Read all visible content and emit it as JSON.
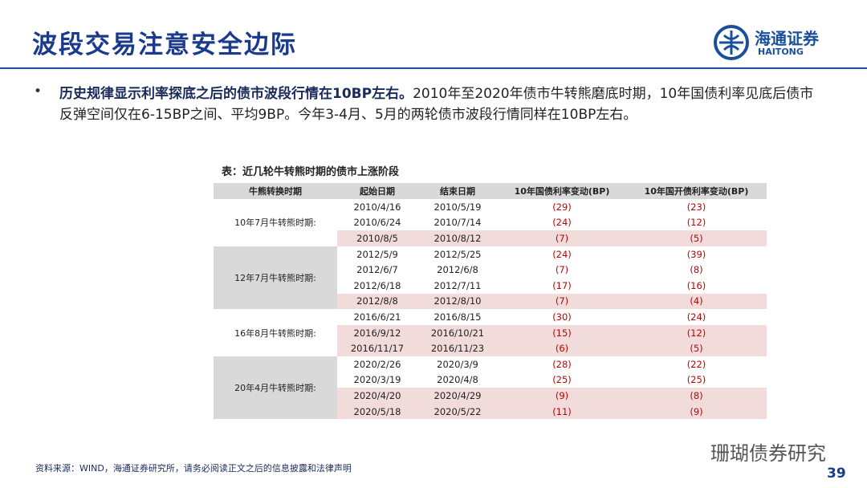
{
  "header": {
    "title": "波段交易注意安全边际",
    "logo_cn": "海通证券",
    "logo_en": "HAITONG"
  },
  "bullet": {
    "lead": "历史规律显示利率探底之后的债市波段行情在10BP左右。",
    "text": "2010年至2020年债市牛转熊磨底时期，10年国债利率见底后债市反弹空间仅在6-15BP之间、平均9BP。今年3-4月、5月的两轮债市波段行情同样在10BP左右。"
  },
  "table": {
    "caption": "表：近几轮牛转熊时期的债市上涨阶段",
    "columns": [
      "牛熊转换时期",
      "起始日期",
      "结束日期",
      "10年国债利率变动(BP)",
      "10年国开债利率变动(BP)"
    ],
    "groups": [
      {
        "label": "10年7月牛转熊时期:",
        "rows": [
          [
            "2010/4/16",
            "2010/5/19",
            "(29)",
            "(23)"
          ],
          [
            "2010/6/24",
            "2010/7/14",
            "(24)",
            "(12)"
          ],
          [
            "2010/8/5",
            "2010/8/12",
            "(7)",
            "(5)"
          ]
        ]
      },
      {
        "label": "12年7月牛转熊时期:",
        "rows": [
          [
            "2012/5/9",
            "2012/5/25",
            "(24)",
            "(39)"
          ],
          [
            "2012/6/7",
            "2012/6/8",
            "(7)",
            "(8)"
          ],
          [
            "2012/6/18",
            "2012/7/11",
            "(17)",
            "(16)"
          ],
          [
            "2012/8/8",
            "2012/8/10",
            "(7)",
            "(4)"
          ]
        ]
      },
      {
        "label": "16年8月牛转熊时期:",
        "rows": [
          [
            "2016/6/21",
            "2016/8/15",
            "(30)",
            "(24)"
          ],
          [
            "2016/9/12",
            "2016/10/21",
            "(15)",
            "(12)"
          ],
          [
            "2016/11/17",
            "2016/11/23",
            "(6)",
            "(5)"
          ]
        ]
      },
      {
        "label": "20年4月牛转熊时期:",
        "rows": [
          [
            "2020/2/26",
            "2020/3/9",
            "(28)",
            "(22)"
          ],
          [
            "2020/3/19",
            "2020/4/8",
            "(25)",
            "(25)"
          ],
          [
            "2020/4/20",
            "2020/4/29",
            "(9)",
            "(8)"
          ],
          [
            "2020/5/18",
            "2020/5/22",
            "(11)",
            "(9)"
          ]
        ]
      }
    ]
  },
  "footer": {
    "source": "资料来源：WIND，海通证券研究所，请务必阅读正文之后的信息披露和法律声明",
    "watermark": "珊瑚债券研究",
    "page": "39"
  }
}
